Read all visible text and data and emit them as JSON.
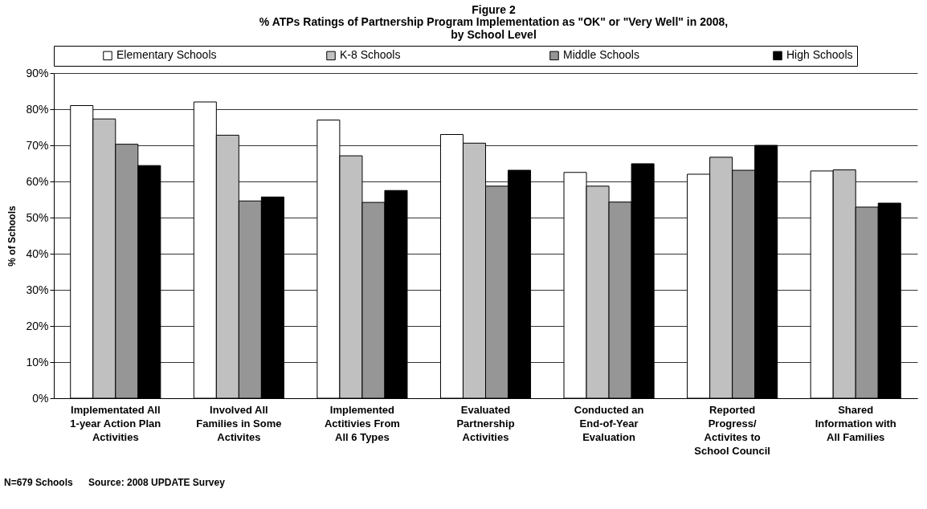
{
  "chart_data": {
    "type": "bar",
    "title": "Figure 2",
    "subtitle": "% ATPs Ratings of Partnership Program Implementation as \"OK\" or \"Very Well\" in 2008,\nby School Level",
    "ylabel": "% of Schools",
    "categories": [
      "Implementated All\n1-year Action Plan\nActivities",
      "Involved All\nFamilies in Some\nActivites",
      "Implemented\nActitivies From\nAll 6 Types",
      "Evaluated\nPartnership\nActivities",
      "Conducted an\nEnd-of-Year\nEvaluation",
      "Reported\nProgress/\nActivites to\nSchool Council",
      "Shared\nInformation with\nAll Families"
    ],
    "series": [
      {
        "name": "Elementary Schools",
        "color": "#ffffff",
        "values": [
          81.0,
          82.0,
          77.0,
          73.0,
          62.5,
          62.0,
          62.9
        ]
      },
      {
        "name": "K-8 Schools",
        "color": "#c0c0c0",
        "values": [
          77.3,
          72.8,
          67.1,
          70.6,
          58.7,
          66.7,
          63.2
        ]
      },
      {
        "name": "Middle Schools",
        "color": "#969696",
        "values": [
          70.3,
          54.6,
          54.2,
          58.7,
          54.3,
          63.1,
          52.9
        ]
      },
      {
        "name": "High Schools",
        "color": "#000000",
        "values": [
          64.4,
          55.7,
          57.5,
          63.1,
          64.9,
          70.0,
          54.0
        ]
      }
    ],
    "ylim": [
      0,
      90
    ],
    "yticks": [
      {
        "value": 0,
        "label": "0%"
      },
      {
        "value": 10,
        "label": "10%"
      },
      {
        "value": 20,
        "label": "20%"
      },
      {
        "value": 30,
        "label": "30%"
      },
      {
        "value": 40,
        "label": "40%"
      },
      {
        "value": 50,
        "label": "50%"
      },
      {
        "value": 60,
        "label": "60%"
      },
      {
        "value": 70,
        "label": "70%"
      },
      {
        "value": 80,
        "label": "80%"
      },
      {
        "value": 90,
        "label": "90%"
      }
    ],
    "grid": "y",
    "legend": "top",
    "annotations": [
      "N=679 Schools",
      "Source: 2008 UPDATE Survey"
    ]
  }
}
